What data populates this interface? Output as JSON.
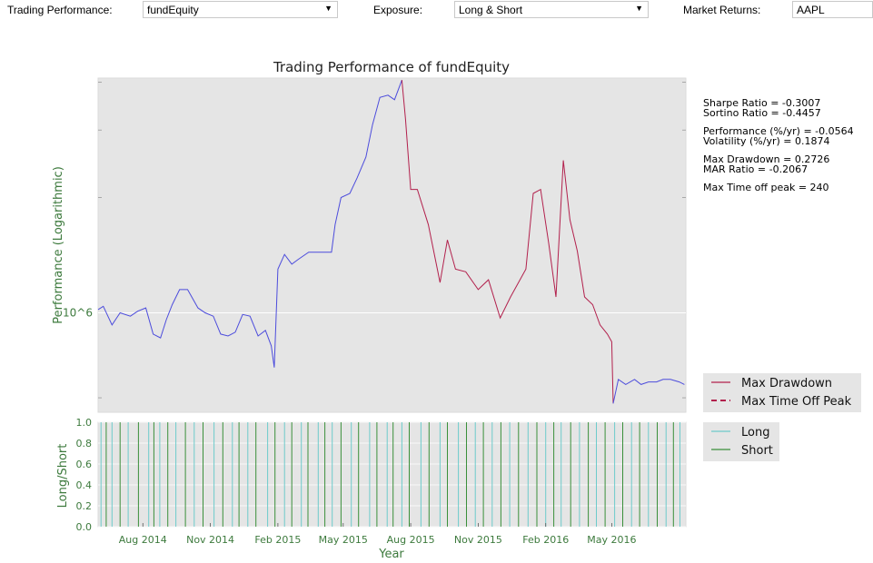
{
  "toolbar": {
    "trading_performance_label": "Trading Performance:",
    "trading_performance_value": "fundEquity",
    "exposure_label": "Exposure:",
    "exposure_value": "Long & Short",
    "market_returns_label": "Market Returns:",
    "market_returns_value": "AAPL"
  },
  "chart_data": [
    {
      "type": "line",
      "title": "Trading Performance of fundEquity",
      "ylabel": "Performance (Logarithmic)",
      "yscale": "log",
      "ytick_labels": [
        "10^6"
      ],
      "grid": true,
      "legend": {
        "placement": "outside-right",
        "entries": [
          "Max Drawdown",
          "Max Time Off Peak"
        ]
      },
      "colors": {
        "equity": "#4c4cdc",
        "drawdown": "#b2204c",
        "background": "#e5e5e5"
      },
      "series": [
        {
          "x": [
            "2014-06-01",
            "2014-06-08",
            "2014-06-20",
            "2014-07-01",
            "2014-07-15",
            "2014-07-25",
            "2014-08-05",
            "2014-08-15",
            "2014-08-25",
            "2014-09-02",
            "2014-09-10",
            "2014-09-20",
            "2014-10-01",
            "2014-10-15",
            "2014-10-25",
            "2014-11-05",
            "2014-11-15",
            "2014-11-25",
            "2014-12-05",
            "2014-12-15",
            "2014-12-25",
            "2015-01-05",
            "2015-01-15",
            "2015-01-23",
            "2015-01-27",
            "2015-02-01",
            "2015-02-10",
            "2015-02-20",
            "2015-03-01",
            "2015-03-15",
            "2015-04-01",
            "2015-04-15",
            "2015-04-20",
            "2015-04-28",
            "2015-05-10",
            "2015-05-20",
            "2015-06-01",
            "2015-06-10",
            "2015-06-20",
            "2015-07-01",
            "2015-07-10",
            "2015-07-20"
          ],
          "values": [
            1.02,
            1.04,
            0.93,
            1.0,
            0.98,
            1.01,
            1.03,
            0.88,
            0.86,
            0.96,
            1.05,
            1.15,
            1.15,
            1.03,
            1.0,
            0.98,
            0.88,
            0.87,
            0.89,
            0.99,
            0.98,
            0.87,
            0.9,
            0.82,
            0.72,
            1.3,
            1.42,
            1.34,
            1.38,
            1.44,
            1.44,
            1.44,
            1.7,
            2.0,
            2.05,
            2.25,
            2.55,
            3.1,
            3.65,
            3.7,
            3.6,
            4.05
          ]
        },
        {
          "name": "Max Drawdown",
          "x": [
            "2015-07-20",
            "2015-07-25",
            "2015-08-01",
            "2015-08-10",
            "2015-08-25",
            "2015-09-10",
            "2015-09-20",
            "2015-10-01",
            "2015-10-15",
            "2015-11-01",
            "2015-11-15",
            "2015-12-01",
            "2015-12-15",
            "2016-01-05",
            "2016-01-15",
            "2016-01-25",
            "2016-02-05",
            "2016-02-15",
            "2016-02-25",
            "2016-03-05",
            "2016-03-15",
            "2016-03-25",
            "2016-04-05",
            "2016-04-15",
            "2016-04-25",
            "2016-05-01",
            "2016-05-03"
          ],
          "values": [
            4.05,
            3.2,
            2.1,
            2.1,
            1.7,
            1.2,
            1.55,
            1.3,
            1.28,
            1.15,
            1.22,
            0.97,
            1.1,
            1.3,
            2.05,
            2.1,
            1.52,
            1.1,
            2.5,
            1.75,
            1.45,
            1.1,
            1.05,
            0.93,
            0.88,
            0.84,
            0.58
          ]
        },
        {
          "x": [
            "2016-05-03",
            "2016-05-10",
            "2016-05-20",
            "2016-06-01",
            "2016-06-10",
            "2016-06-20",
            "2016-07-01",
            "2016-07-10",
            "2016-07-20",
            "2016-08-01",
            "2016-08-08"
          ],
          "values": [
            0.58,
            0.67,
            0.65,
            0.67,
            0.65,
            0.66,
            0.66,
            0.67,
            0.67,
            0.66,
            0.65
          ]
        }
      ],
      "stats": [
        [
          "Sharpe Ratio = -0.3007",
          "Sortino Ratio = -0.4457"
        ],
        [
          "Performance (%/yr) = -0.0564",
          "Volatility (%/yr)       = 0.1874"
        ],
        [
          "Max Drawdown = 0.2726",
          "MAR Ratio        = -0.2067"
        ],
        [
          " Max Time off peak =  240"
        ]
      ]
    },
    {
      "type": "line",
      "ylabel": "Long/Short",
      "xlabel": "Year",
      "ylim": [
        0.0,
        1.0
      ],
      "yticks": [
        "0.0",
        "0.2",
        "0.4",
        "0.6",
        "0.8",
        "1.0"
      ],
      "xticks": [
        "Aug 2014",
        "Nov 2014",
        "Feb 2015",
        "May 2015",
        "Aug 2015",
        "Nov 2015",
        "Feb 2016",
        "May 2016"
      ],
      "grid": true,
      "legend": {
        "placement": "outside-right",
        "entries": [
          "Long",
          "Short"
        ]
      },
      "colors": {
        "long": "#6dcbcb",
        "short": "#3a8f3a",
        "background": "#e5e5e5"
      },
      "series": [
        {
          "name": "Long",
          "toggle_dates": [
            "2014-06-05",
            "2014-06-20",
            "2014-07-12",
            "2014-08-09",
            "2014-08-24",
            "2014-09-15",
            "2014-10-10",
            "2014-11-06",
            "2014-12-01",
            "2014-12-22",
            "2015-01-18",
            "2015-02-10",
            "2015-03-05",
            "2015-03-28",
            "2015-04-16",
            "2015-05-12",
            "2015-06-06",
            "2015-06-30",
            "2015-07-20",
            "2015-08-15",
            "2015-09-10",
            "2015-10-05",
            "2015-10-28",
            "2015-11-20",
            "2015-12-14",
            "2016-01-08",
            "2016-02-01",
            "2016-02-22",
            "2016-03-18",
            "2016-04-10",
            "2016-05-05",
            "2016-05-28",
            "2016-06-20",
            "2016-07-14",
            "2016-08-02"
          ]
        },
        {
          "name": "Short",
          "toggle_dates": [
            "2014-06-12",
            "2014-07-01",
            "2014-07-26",
            "2014-08-16",
            "2014-09-04",
            "2014-09-28",
            "2014-10-22",
            "2014-11-18",
            "2014-12-10",
            "2015-01-02",
            "2015-01-28",
            "2015-02-20",
            "2015-03-14",
            "2015-04-06",
            "2015-04-28",
            "2015-05-22",
            "2015-06-16",
            "2015-07-08",
            "2015-07-30",
            "2015-08-26",
            "2015-09-20",
            "2015-10-16",
            "2015-11-08",
            "2015-12-02",
            "2015-12-26",
            "2016-01-20",
            "2016-02-12",
            "2016-03-06",
            "2016-03-30",
            "2016-04-22",
            "2016-05-16",
            "2016-06-08",
            "2016-07-02",
            "2016-07-24"
          ]
        }
      ]
    }
  ]
}
